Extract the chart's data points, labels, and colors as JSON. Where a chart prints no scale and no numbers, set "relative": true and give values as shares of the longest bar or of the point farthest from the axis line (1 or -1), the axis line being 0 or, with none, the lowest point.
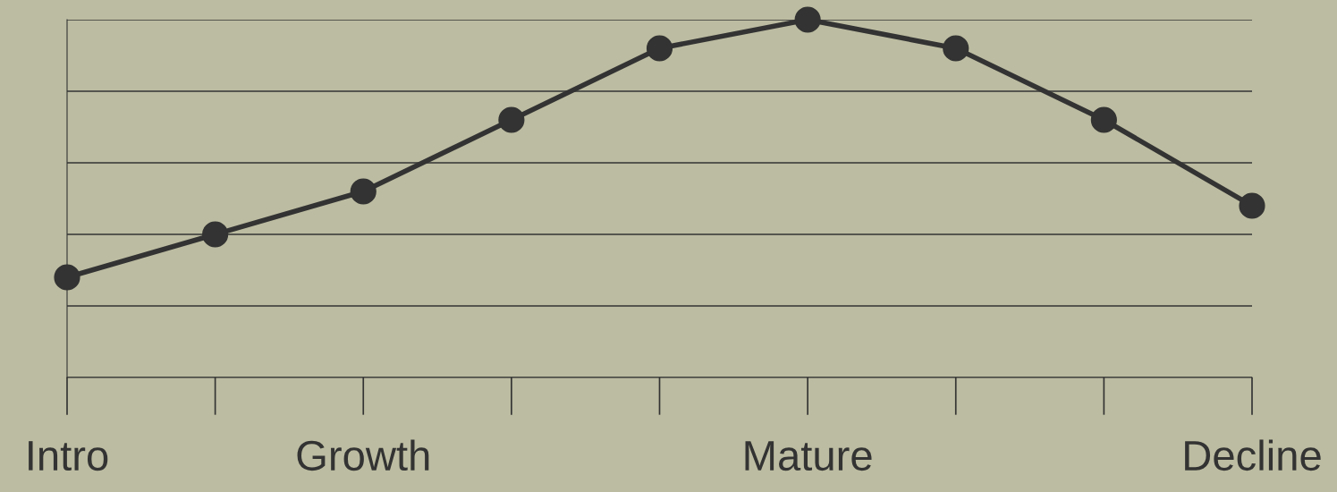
{
  "chart_data": {
    "type": "line",
    "relative": true,
    "categories": [
      "Intro",
      null,
      "Growth",
      null,
      null,
      "Mature",
      null,
      null,
      "Decline"
    ],
    "series": [
      {
        "color": "#333333",
        "values": [
          0.28,
          0.4,
          0.52,
          0.72,
          0.92,
          1.0,
          0.92,
          0.72,
          0.48
        ]
      }
    ],
    "grid": "y",
    "marker": "circle",
    "line_style": "solid",
    "legend": false
  }
}
